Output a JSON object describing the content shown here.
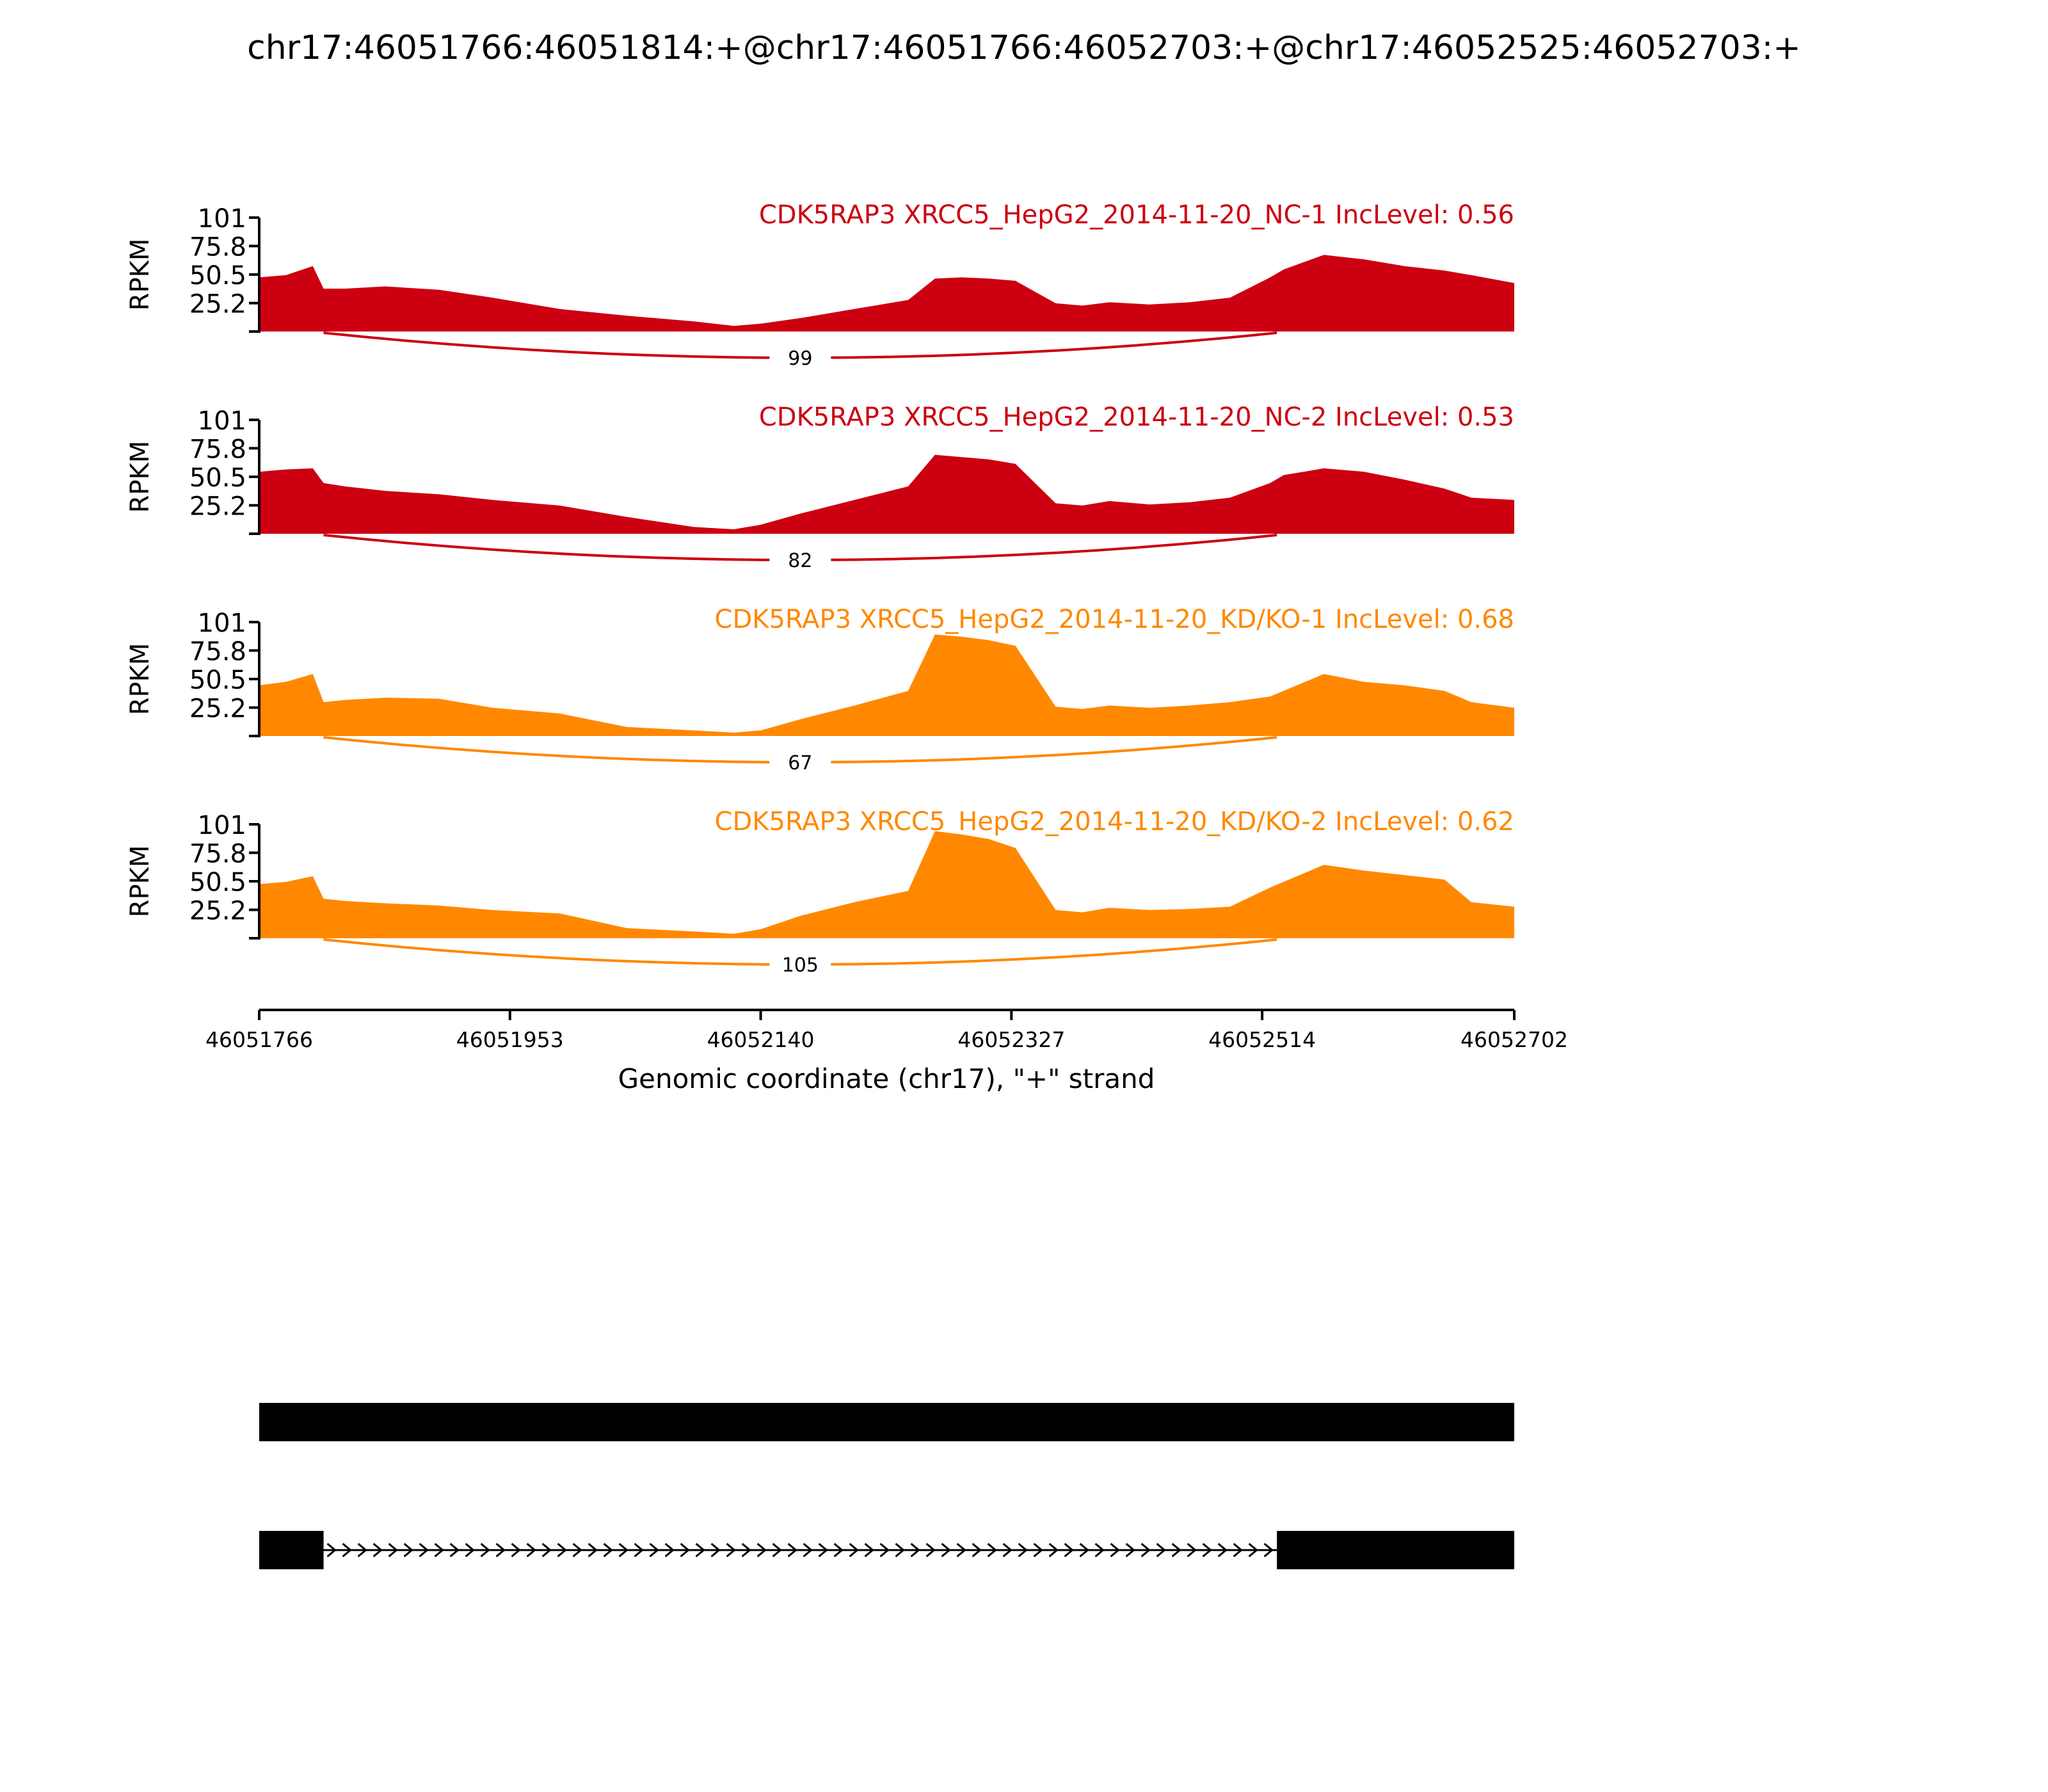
{
  "figure": {
    "title": "chr17:46051766:46051814:+@chr17:46051766:46052703:+@chr17:46052525:46052703:+",
    "xlabel": "Genomic coordinate (chr17), \"+\" strand",
    "ylabel": "RPKM",
    "colors": {
      "nc": "#cc0011",
      "kd": "#ff8800",
      "axis": "#000000"
    }
  },
  "chart_data": {
    "type": "area",
    "x_ticks": [
      "46051766",
      "46051953",
      "46052140",
      "46052327",
      "46052514",
      "46052702"
    ],
    "xlim": [
      46051766,
      46052702
    ],
    "y_ticks": [
      "25.2",
      "50.5",
      "75.8",
      "101"
    ],
    "ylim": [
      0,
      101
    ],
    "x": [
      46051766,
      46051786,
      46051806,
      46051814,
      46051830,
      46051860,
      46051900,
      46051940,
      46051990,
      46052040,
      46052090,
      46052120,
      46052140,
      46052170,
      46052210,
      46052250,
      46052270,
      46052290,
      46052310,
      46052330,
      46052360,
      46052380,
      46052400,
      46052430,
      46052460,
      46052490,
      46052520,
      46052530,
      46052560,
      46052590,
      46052620,
      46052650,
      46052670,
      46052702
    ],
    "series": [
      {
        "name": "CDK5RAP3 XRCC5_HepG2_2014-11-20_NC-1",
        "inc_level": "IncLevel: 0.56",
        "values": [
          48,
          50,
          58,
          38,
          38,
          40,
          37,
          30,
          20,
          14,
          9,
          5,
          7,
          12,
          20,
          28,
          47,
          48,
          47,
          45,
          25,
          23,
          26,
          24,
          26,
          30,
          48,
          55,
          68,
          64,
          58,
          54,
          50,
          43
        ]
      },
      {
        "name": "CDK5RAP3 XRCC5_HepG2_2014-11-20_NC-2",
        "inc_level": "IncLevel: 0.53",
        "values": [
          55,
          57,
          58,
          45,
          42,
          38,
          35,
          30,
          25,
          15,
          6,
          4,
          8,
          18,
          30,
          42,
          70,
          68,
          66,
          62,
          27,
          25,
          29,
          26,
          28,
          32,
          45,
          52,
          58,
          55,
          48,
          40,
          32,
          30
        ]
      },
      {
        "name": "CDK5RAP3 XRCC5_HepG2_2014-11-20_KD/KO-1",
        "inc_level": "IncLevel: 0.68",
        "values": [
          45,
          48,
          55,
          30,
          32,
          34,
          33,
          25,
          20,
          8,
          5,
          3,
          5,
          15,
          27,
          40,
          90,
          88,
          85,
          80,
          26,
          24,
          27,
          25,
          27,
          30,
          35,
          40,
          55,
          48,
          45,
          40,
          30,
          25
        ]
      },
      {
        "name": "CDK5RAP3 XRCC5_HepG2_2014-11-20_KD/KO-2",
        "inc_level": "IncLevel: 0.62",
        "values": [
          48,
          50,
          55,
          35,
          33,
          31,
          29,
          25,
          22,
          9,
          6,
          4,
          8,
          20,
          32,
          42,
          95,
          92,
          88,
          80,
          25,
          23,
          27,
          25,
          26,
          28,
          45,
          50,
          65,
          60,
          56,
          52,
          32,
          28
        ]
      }
    ],
    "junctions": [
      {
        "track": "NC-1",
        "count": "99"
      },
      {
        "track": "NC-2",
        "count": "82"
      },
      {
        "track": "KD/KO-1",
        "count": "67"
      },
      {
        "track": "KD/KO-2",
        "count": "105"
      }
    ],
    "isoforms": [
      {
        "exons": [
          [
            46051766,
            46052702
          ]
        ]
      },
      {
        "exons": [
          [
            46051766,
            46051814
          ],
          [
            46052525,
            46052702
          ]
        ]
      }
    ]
  }
}
